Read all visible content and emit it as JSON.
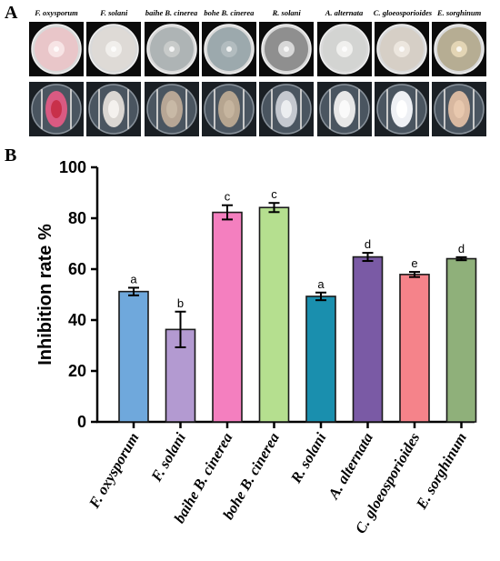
{
  "panel_a": {
    "letter": "A",
    "organisms": [
      {
        "name": "F. oxysporum",
        "top_color": "#e9c6c9",
        "top_center": "#f7e4e5",
        "bottom_color": "#d95a82",
        "bottom_center": "#c8304a"
      },
      {
        "name": "F. solani",
        "top_color": "#dedad6",
        "top_center": "#f1efec",
        "bottom_color": "#dad6d2",
        "bottom_center": "#f4f1ee"
      },
      {
        "name": "baihe B. cinerea",
        "top_color": "#aeb4b5",
        "top_center": "#c8cbca",
        "bottom_color": "#b7a695",
        "bottom_center": "#c8b9a6"
      },
      {
        "name": "bohe B. cinerea",
        "top_color": "#9ca9ad",
        "top_center": "#b2bcbf",
        "bottom_color": "#b6a590",
        "bottom_center": "#c6b59f"
      },
      {
        "name": "R. solani",
        "top_color": "#8f8f8f",
        "top_center": "#d8d8d8",
        "bottom_color": "#c4c8cf",
        "bottom_center": "#eceef0"
      },
      {
        "name": "A. alternata",
        "top_color": "#d3d4d2",
        "top_center": "#f0f0ee",
        "bottom_color": "#e7e7e7",
        "bottom_center": "#fafafa"
      },
      {
        "name": "C. gloeosporioides",
        "top_color": "#d6cfc6",
        "top_center": "#ece6de",
        "bottom_color": "#eef0f4",
        "bottom_center": "#ffffff"
      },
      {
        "name": "E. sorghinum",
        "top_color": "#b6ad93",
        "top_center": "#e3d5b5",
        "bottom_color": "#d8b8a0",
        "bottom_center": "#e8c8ae"
      }
    ]
  },
  "panel_b": {
    "letter": "B"
  },
  "chart_data": {
    "type": "bar",
    "categories": [
      "F. oxysporum",
      "F. solani",
      "baihe B. cinerea",
      "bohe B. cinerea",
      "R. solani",
      "A. alternata",
      "C. gloeosporioides",
      "E. sorghinum"
    ],
    "values": [
      51.2,
      36.3,
      82.3,
      84.2,
      49.3,
      64.8,
      57.9,
      64.1
    ],
    "errors": [
      1.5,
      7.0,
      2.8,
      1.8,
      1.5,
      1.6,
      1.0,
      0.6
    ],
    "significance": [
      "a",
      "b",
      "c",
      "c",
      "a",
      "d",
      "e",
      "d"
    ],
    "colors": [
      "#6fa8dc",
      "#b39ad1",
      "#f47fbf",
      "#b5df8f",
      "#1a8fae",
      "#7a5aa5",
      "#f5838a",
      "#8fb07a"
    ],
    "ylabel": "Inhibition rate %",
    "xlabel": "",
    "title": "",
    "ylim": [
      0,
      100
    ],
    "yticks": [
      0,
      20,
      40,
      60,
      80,
      100
    ],
    "grid": false
  }
}
